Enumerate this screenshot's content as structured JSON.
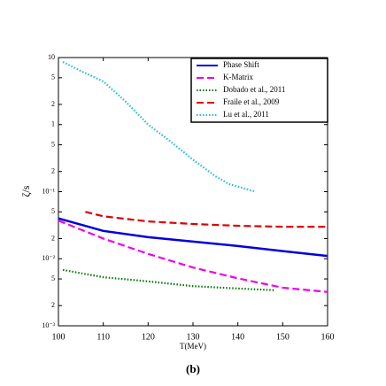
{
  "chart_data": {
    "type": "line",
    "x_label": "T(MeV)",
    "y_label": "ζ/s",
    "caption": "(b)",
    "xlim": [
      100,
      160
    ],
    "xticks": [
      100,
      110,
      120,
      130,
      140,
      150,
      160
    ],
    "ylim": [
      0.001,
      10
    ],
    "y_log": true,
    "yticks": [
      {
        "value": 0.001,
        "label": "10⁻³"
      },
      {
        "value": 0.002,
        "label": "2"
      },
      {
        "value": 0.005,
        "label": "5"
      },
      {
        "value": 0.01,
        "label": "10⁻²"
      },
      {
        "value": 0.02,
        "label": "2"
      },
      {
        "value": 0.05,
        "label": "5"
      },
      {
        "value": 0.1,
        "label": "10⁻¹"
      },
      {
        "value": 0.2,
        "label": "2"
      },
      {
        "value": 0.5,
        "label": "5"
      },
      1,
      2,
      5,
      10
    ],
    "legend": "upper right",
    "series": [
      {
        "name": "Phase Shift",
        "color": "#0000dd",
        "style": "solid",
        "x": [
          100,
          110,
          120,
          130,
          140,
          150,
          160
        ],
        "values": [
          0.04,
          0.026,
          0.021,
          0.018,
          0.0155,
          0.013,
          0.011
        ]
      },
      {
        "name": "K-Matrix",
        "color": "#ee00ee",
        "style": "dashed",
        "x": [
          100,
          110,
          120,
          130,
          140,
          150,
          160
        ],
        "values": [
          0.037,
          0.02,
          0.0118,
          0.0074,
          0.0051,
          0.0037,
          0.0032
        ]
      },
      {
        "name": "Dobado et al., 2011",
        "color": "#007700",
        "style": "dotted",
        "x": [
          101,
          110,
          120,
          130,
          140,
          148
        ],
        "values": [
          0.0068,
          0.0053,
          0.0046,
          0.0039,
          0.0036,
          0.0034
        ]
      },
      {
        "name": "Fraile et al., 2009",
        "color": "#dd0000",
        "style": "dashed",
        "x": [
          106,
          110,
          120,
          130,
          140,
          150,
          160
        ],
        "values": [
          0.05,
          0.043,
          0.036,
          0.033,
          0.031,
          0.03,
          0.03
        ]
      },
      {
        "name": "Lu et al., 2011",
        "color": "#22bbdd",
        "style": "dotted",
        "x": [
          101,
          105,
          110,
          115,
          120,
          125,
          130,
          135,
          138,
          144
        ],
        "values": [
          8.6,
          6.3,
          4.4,
          2.2,
          1.0,
          0.56,
          0.3,
          0.17,
          0.13,
          0.1
        ]
      }
    ]
  }
}
